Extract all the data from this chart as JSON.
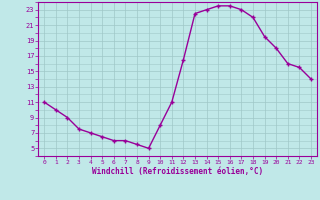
{
  "x": [
    0,
    1,
    2,
    3,
    4,
    5,
    6,
    7,
    8,
    9,
    10,
    11,
    12,
    13,
    14,
    15,
    16,
    17,
    18,
    19,
    20,
    21,
    22,
    23
  ],
  "y": [
    11,
    10,
    9,
    7.5,
    7,
    6.5,
    6,
    6,
    5.5,
    5,
    8,
    11,
    16.5,
    22.5,
    23,
    23.5,
    23.5,
    23,
    22,
    19.5,
    18,
    16,
    15.5,
    14
  ],
  "xlabel": "Windchill (Refroidissement éolien,°C)",
  "color": "#990099",
  "bg_color": "#c0e8e8",
  "grid_color": "#a0c8c8",
  "ylim": [
    4,
    24
  ],
  "xlim": [
    -0.5,
    23.5
  ],
  "yticks": [
    5,
    7,
    9,
    11,
    13,
    15,
    17,
    19,
    21,
    23
  ],
  "xticks": [
    0,
    1,
    2,
    3,
    4,
    5,
    6,
    7,
    8,
    9,
    10,
    11,
    12,
    13,
    14,
    15,
    16,
    17,
    18,
    19,
    20,
    21,
    22,
    23
  ],
  "markersize": 2.5,
  "linewidth": 1.0
}
